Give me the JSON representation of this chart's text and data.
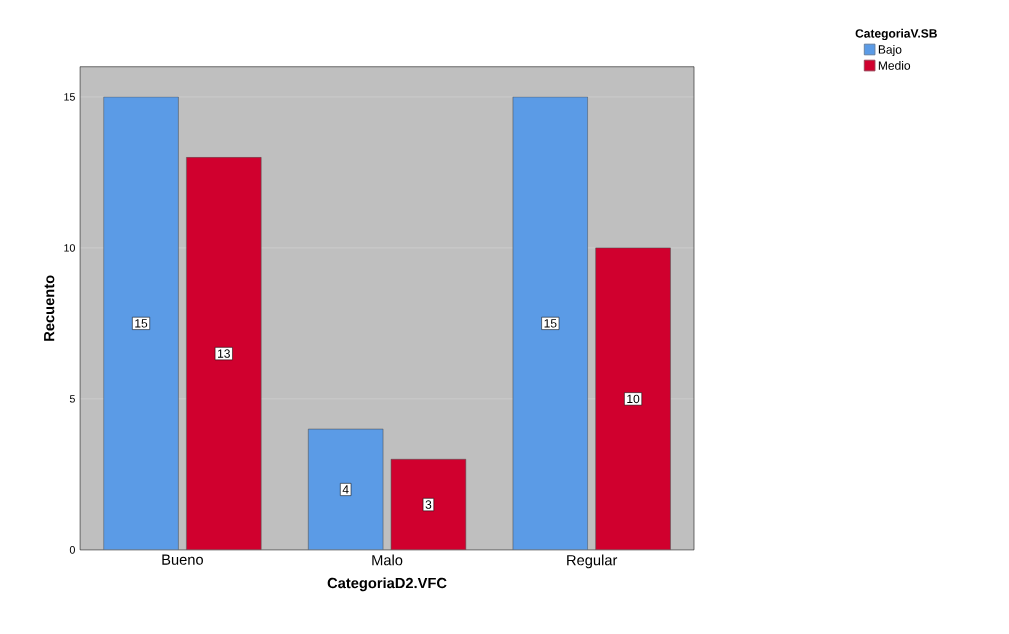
{
  "chart_data": {
    "type": "bar",
    "xlabel": "CategoriaD2.VFC",
    "ylabel": "Recuento",
    "legend_title": "CategoriaV.SB",
    "categories": [
      "Bueno",
      "Malo",
      "Regular"
    ],
    "series": [
      {
        "name": "Bajo",
        "color": "#5b9be6",
        "values": [
          15,
          4,
          15
        ]
      },
      {
        "name": "Medio",
        "color": "#d0002e",
        "values": [
          13,
          3,
          10
        ]
      }
    ],
    "ylim": [
      0,
      16
    ],
    "yticks": [
      0,
      5,
      10,
      15
    ],
    "grid": "y",
    "legend": "top right",
    "data_labels": true
  }
}
